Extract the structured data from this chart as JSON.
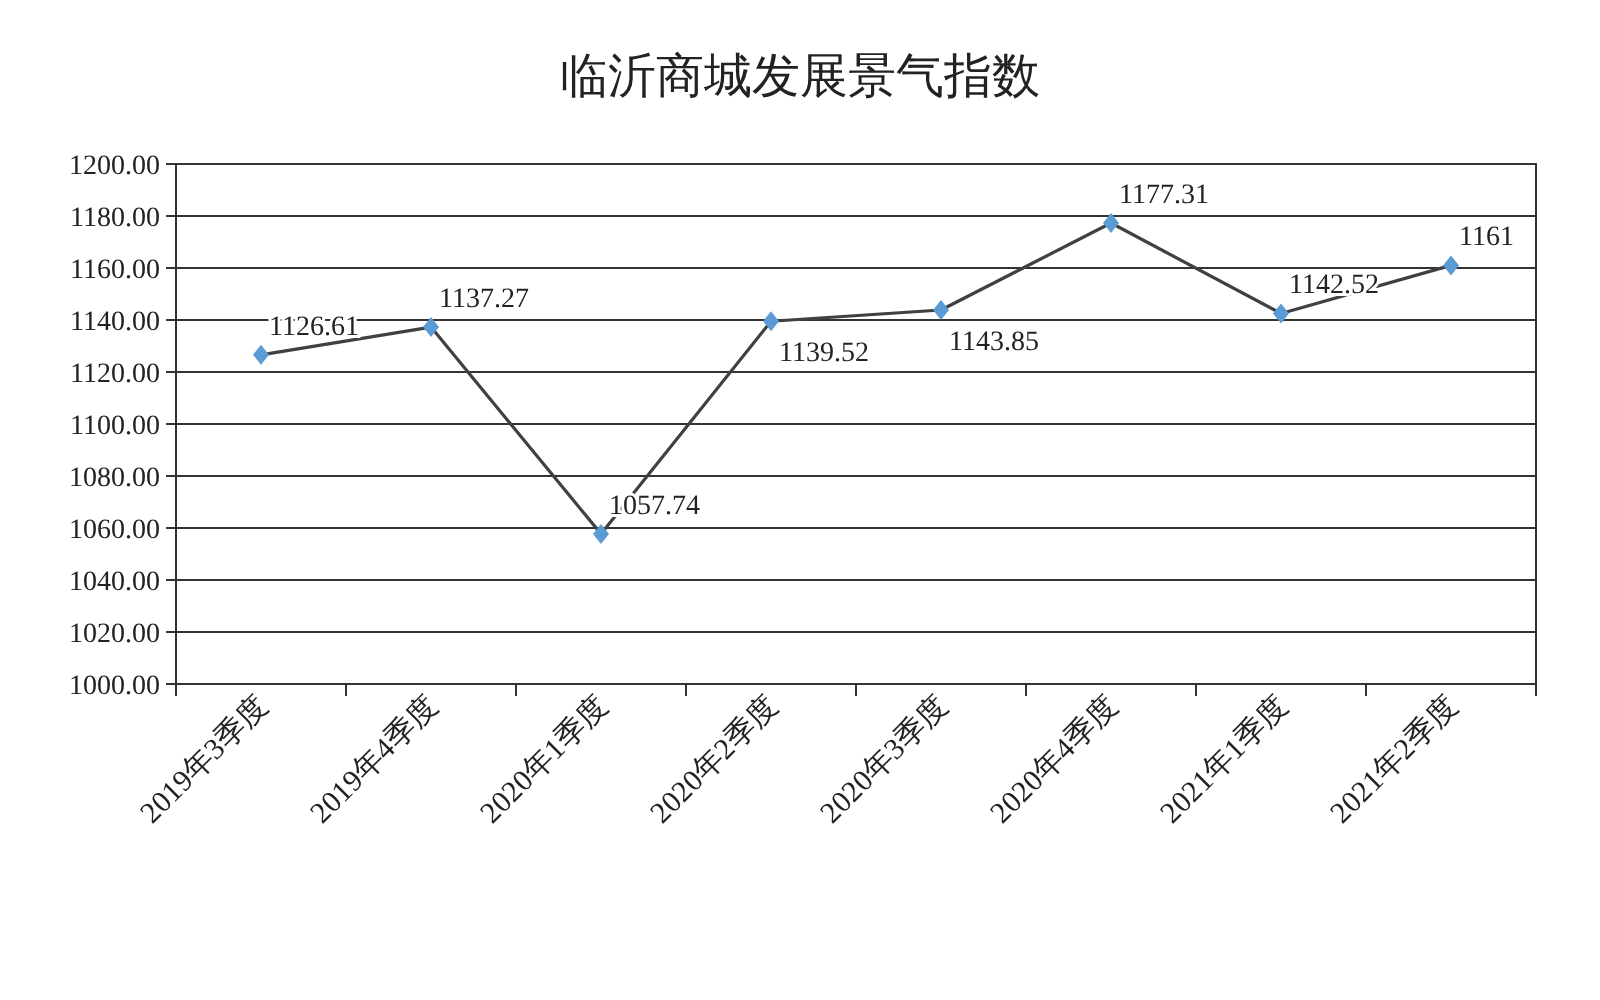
{
  "chart_data": {
    "type": "line",
    "title": "临沂商城发展景气指数",
    "categories": [
      "2019年3季度",
      "2019年4季度",
      "2020年1季度",
      "2020年2季度",
      "2020年3季度",
      "2020年4季度",
      "2021年1季度",
      "2021年2季度"
    ],
    "series": [
      {
        "color": "#404040",
        "colors": [
          "#5b9bd5",
          "#5b9bd5",
          "#5b9bd5",
          "#5b9bd5",
          "#5b9bd5",
          "#5b9bd5",
          "#5b9bd5",
          "#5b9bd5"
        ],
        "values": [
          1126.61,
          1137.27,
          1057.74,
          1139.52,
          1143.85,
          1177.31,
          1142.52,
          1161
        ]
      }
    ],
    "ylim": [
      1000,
      1200
    ],
    "yticks": [
      {
        "value": 1000,
        "label": "1000.00"
      },
      {
        "value": 1020,
        "label": "1020.00"
      },
      {
        "value": 1040,
        "label": "1040.00"
      },
      {
        "value": 1060,
        "label": "1060.00"
      },
      {
        "value": 1080,
        "label": "1080.00"
      },
      {
        "value": 1100,
        "label": "1100.00"
      },
      {
        "value": 1120,
        "label": "1120.00"
      },
      {
        "value": 1140,
        "label": "1140.00"
      },
      {
        "value": 1160,
        "label": "1160.00"
      },
      {
        "value": 1180,
        "label": "1180.00"
      },
      {
        "value": 1200,
        "label": "1200.00"
      }
    ],
    "grid": "y",
    "marker": "diamond",
    "data_labels": true
  }
}
